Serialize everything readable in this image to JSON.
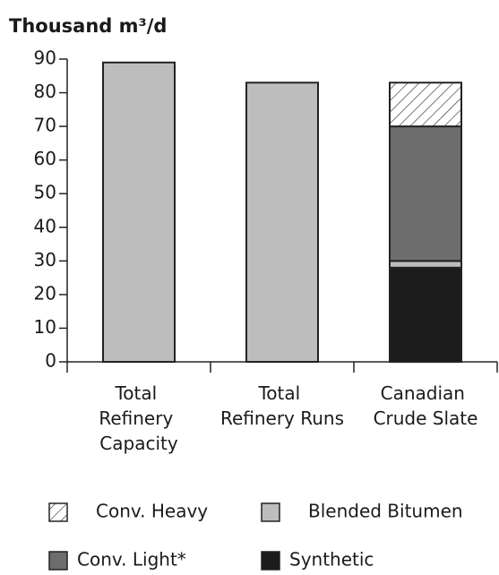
{
  "chart_data": {
    "type": "stacked_bar",
    "title": "Thousand m³/d",
    "categories": [
      "Total Refinery Capacity",
      "Total Refinery Runs",
      "Canadian Crude Slate"
    ],
    "values": [
      89,
      83,
      null
    ],
    "color": "#bdbdbd",
    "series": [
      {
        "name": "Synthetic",
        "color": "#1c1c1c",
        "values": [
          null,
          null,
          28
        ]
      },
      {
        "name": "Blended Bitumen",
        "color": "#bdbdbd",
        "values": [
          null,
          null,
          2
        ]
      },
      {
        "name": "Conv. Light*",
        "color": "#6d6d6d",
        "values": [
          null,
          null,
          40
        ]
      },
      {
        "name": "Conv. Heavy",
        "color": "hatch",
        "values": [
          null,
          null,
          13
        ]
      }
    ],
    "ylim": [
      0,
      90
    ],
    "yticks": [
      0,
      10,
      20,
      30,
      40,
      50,
      60,
      70,
      80,
      90
    ],
    "grid": false
  }
}
